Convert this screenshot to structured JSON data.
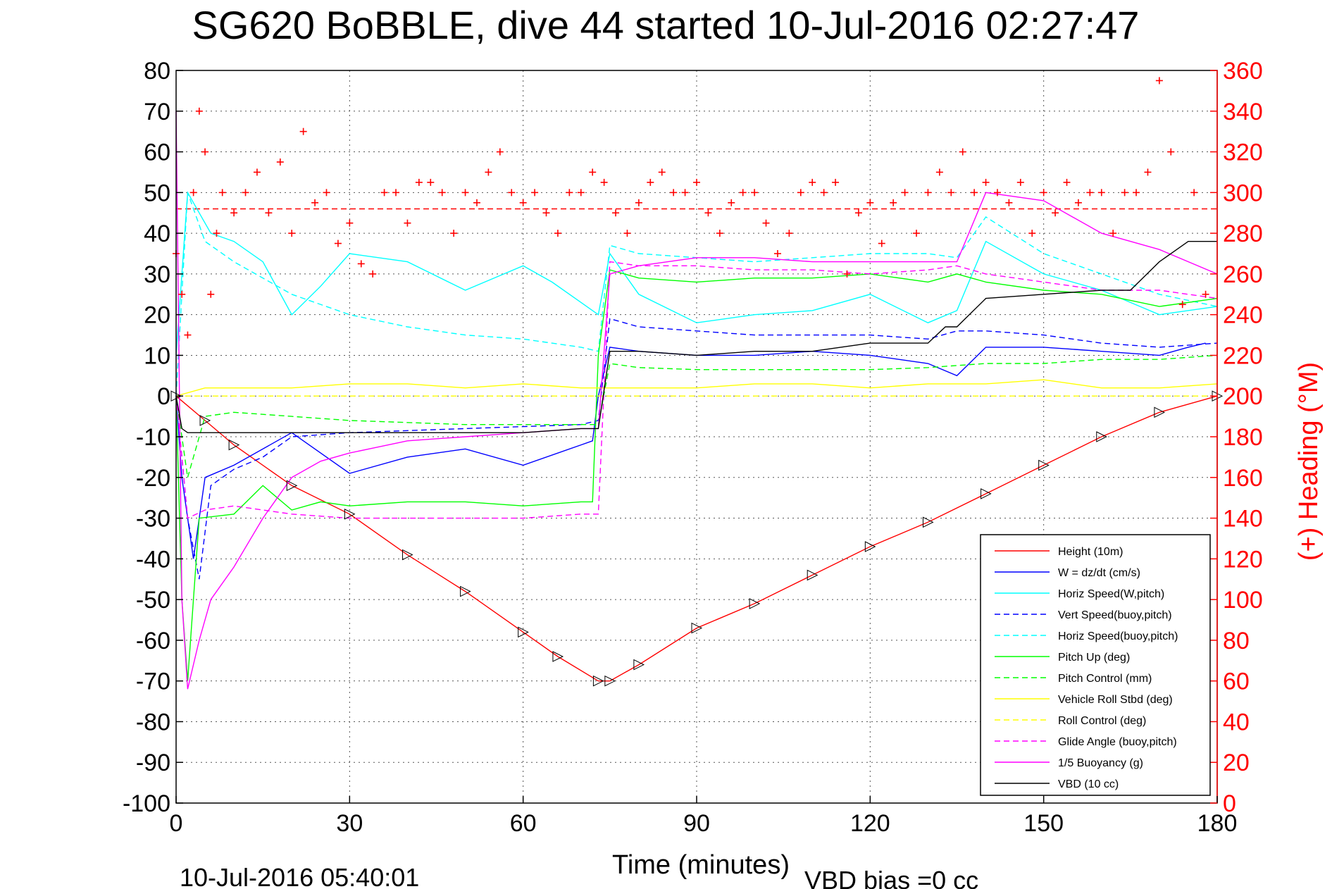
{
  "title": "SG620 BoBBLE, dive 44 started 10-Jul-2016 02:27:47",
  "footer_left": "10-Jul-2016 05:40:01",
  "footer_right": "VBD bias =0 cc",
  "colors": {
    "height": "#ff0000",
    "w": "#0000ff",
    "horiz_w": "#00ffff",
    "vert_buoy": "#0000ff",
    "horiz_buoy": "#00ffff",
    "pitch": "#00ff00",
    "pitch_ctl": "#00ff00",
    "roll": "#ffff00",
    "roll_ctl": "#ffff00",
    "glide": "#ff00ff",
    "buoy": "#ff00ff",
    "vbd": "#000000",
    "heading": "#ff0000"
  },
  "chart_data": {
    "type": "line",
    "xlabel": "Time (minutes)",
    "ylabel": "",
    "y2label": "(+) Heading (°M)",
    "xlim": [
      0,
      180
    ],
    "ylim": [
      -100,
      80
    ],
    "y2lim": [
      0,
      360
    ],
    "xticks": [
      0,
      30,
      60,
      90,
      120,
      150,
      180
    ],
    "yticks": [
      80,
      70,
      60,
      50,
      40,
      30,
      20,
      10,
      0,
      -10,
      -20,
      -30,
      -40,
      -50,
      -60,
      -70,
      -80,
      -90,
      -100
    ],
    "y2ticks": [
      360,
      340,
      320,
      300,
      280,
      260,
      240,
      220,
      200,
      180,
      160,
      140,
      120,
      100,
      80,
      60,
      40,
      20,
      0
    ],
    "grid": true,
    "legend_position": "bottom-right",
    "heading_reference_line": 292,
    "series": [
      {
        "name": "Height (10m)",
        "style": "solid",
        "color_key": "height",
        "x": [
          0,
          5,
          10,
          20,
          30,
          40,
          50,
          60,
          66,
          73,
          75,
          80,
          90,
          100,
          110,
          120,
          130,
          140,
          150,
          160,
          170,
          180
        ],
        "y": [
          0,
          -6,
          -12,
          -22,
          -29,
          -39,
          -48,
          -58,
          -64,
          -70,
          -70,
          -66,
          -57,
          -51,
          -44,
          -37,
          -31,
          -24,
          -17,
          -10,
          -4,
          0
        ]
      },
      {
        "name": "W = dz/dt (cm/s)",
        "style": "solid",
        "color_key": "w",
        "x": [
          0,
          1,
          2,
          3,
          5,
          10,
          20,
          30,
          40,
          50,
          60,
          70,
          72,
          73,
          75,
          80,
          90,
          100,
          110,
          120,
          130,
          135,
          140,
          150,
          160,
          170,
          175,
          178
        ],
        "y": [
          0,
          -20,
          -30,
          -40,
          -20,
          -17,
          -9,
          -19,
          -15,
          -13,
          -17,
          -12,
          -11,
          0,
          12,
          11,
          10,
          10,
          11,
          10,
          8,
          5,
          12,
          12,
          11,
          10,
          12,
          13
        ]
      },
      {
        "name": "Horiz Speed(W,pitch)",
        "style": "solid",
        "color_key": "horiz_w",
        "x": [
          0,
          2,
          4,
          6,
          10,
          15,
          20,
          25,
          30,
          40,
          50,
          60,
          65,
          70,
          73,
          75,
          80,
          90,
          100,
          110,
          120,
          130,
          135,
          140,
          150,
          160,
          170,
          180
        ],
        "y": [
          10,
          50,
          45,
          40,
          38,
          33,
          20,
          27,
          35,
          33,
          26,
          32,
          28,
          23,
          20,
          35,
          25,
          18,
          20,
          21,
          25,
          18,
          21,
          38,
          30,
          26,
          20,
          22
        ]
      },
      {
        "name": "Vert Speed(buoy,pitch)",
        "style": "dashed",
        "color_key": "vert_buoy",
        "x": [
          0,
          2,
          4,
          6,
          10,
          15,
          20,
          30,
          40,
          50,
          60,
          70,
          73,
          75,
          80,
          90,
          100,
          110,
          120,
          130,
          135,
          140,
          150,
          160,
          170,
          180
        ],
        "y": [
          0,
          -30,
          -45,
          -22,
          -18,
          -15,
          -10,
          -9,
          -8.5,
          -8,
          -7.5,
          -7,
          -6,
          19,
          17,
          16,
          15,
          15,
          15,
          14,
          16,
          16,
          15,
          13,
          12,
          13
        ]
      },
      {
        "name": "Horiz Speed(buoy,pitch)",
        "style": "dashed",
        "color_key": "horiz_buoy",
        "x": [
          0,
          2,
          5,
          10,
          20,
          30,
          40,
          50,
          60,
          70,
          73,
          75,
          80,
          90,
          100,
          110,
          120,
          130,
          135,
          140,
          150,
          160,
          170,
          180
        ],
        "y": [
          0,
          50,
          38,
          33,
          25,
          20,
          17,
          15,
          14,
          12,
          11,
          37,
          35,
          34,
          33,
          34,
          35,
          35,
          34,
          44,
          35,
          30,
          25,
          22
        ]
      },
      {
        "name": "Pitch Up (deg)",
        "style": "solid",
        "color_key": "pitch",
        "x": [
          0,
          1,
          2,
          4,
          10,
          15,
          20,
          25,
          30,
          40,
          50,
          60,
          70,
          72,
          73,
          75,
          80,
          90,
          100,
          110,
          120,
          130,
          135,
          140,
          150,
          160,
          170,
          180
        ],
        "y": [
          0,
          -50,
          -70,
          -30,
          -29,
          -22,
          -28,
          -26,
          -27,
          -26,
          -26,
          -27,
          -26,
          -26,
          10,
          31,
          29,
          28,
          29,
          29,
          30,
          28,
          30,
          28,
          26,
          25,
          22,
          24
        ]
      },
      {
        "name": "Pitch Control (mm)",
        "style": "dashed",
        "color_key": "pitch_ctl",
        "x": [
          0,
          2,
          5,
          10,
          20,
          30,
          40,
          50,
          60,
          70,
          73,
          75,
          80,
          90,
          100,
          110,
          120,
          130,
          140,
          150,
          160,
          170,
          180
        ],
        "y": [
          0,
          -20,
          -5,
          -4,
          -5,
          -6,
          -6.5,
          -7,
          -7,
          -7,
          -7,
          8,
          7,
          6.5,
          6.5,
          6.5,
          6.5,
          7,
          8,
          8,
          9,
          9,
          10
        ]
      },
      {
        "name": "Vehicle Roll Stbd (deg)",
        "style": "solid",
        "color_key": "roll",
        "x": [
          0,
          5,
          10,
          20,
          30,
          40,
          50,
          60,
          70,
          73,
          80,
          90,
          100,
          110,
          120,
          130,
          140,
          150,
          160,
          170,
          180
        ],
        "y": [
          0,
          2,
          2,
          2,
          3,
          3,
          2,
          3,
          2,
          2,
          2,
          2,
          3,
          3,
          2,
          3,
          3,
          4,
          2,
          2,
          3
        ]
      },
      {
        "name": "Roll Control (deg)",
        "style": "dashed",
        "color_key": "roll_ctl",
        "x": [
          0,
          5,
          10,
          20,
          30,
          40,
          50,
          60,
          70,
          73,
          80,
          90,
          100,
          110,
          120,
          130,
          140,
          150,
          160,
          170,
          180
        ],
        "y": [
          0,
          0,
          0,
          0,
          0,
          0,
          0,
          0,
          0,
          0,
          0,
          0,
          0,
          0,
          0,
          0,
          0,
          0,
          0,
          0,
          0
        ]
      },
      {
        "name": "Glide Angle (buoy,pitch)",
        "style": "dashed",
        "color_key": "glide",
        "x": [
          0,
          2,
          5,
          10,
          20,
          30,
          40,
          50,
          60,
          70,
          73,
          75,
          80,
          90,
          100,
          110,
          120,
          130,
          135,
          140,
          150,
          160,
          170,
          180
        ],
        "y": [
          0,
          -30,
          -28,
          -27,
          -29,
          -30,
          -30,
          -30,
          -30,
          -29,
          -29,
          33,
          32,
          32,
          31,
          31,
          30,
          31,
          32,
          30,
          28,
          26,
          26,
          24
        ]
      },
      {
        "name": "1/5 Buoyancy (g)",
        "style": "solid",
        "color_key": "buoy",
        "x": [
          0,
          1,
          2,
          4,
          6,
          10,
          15,
          20,
          25,
          30,
          40,
          50,
          60,
          70,
          73,
          75,
          80,
          90,
          100,
          110,
          120,
          130,
          135,
          140,
          150,
          160,
          170,
          180
        ],
        "y": [
          70,
          -50,
          -72,
          -60,
          -50,
          -42,
          -30,
          -20,
          -16,
          -14,
          -11,
          -10,
          -9,
          -8,
          -8,
          30,
          32,
          34,
          34,
          33,
          33,
          33,
          33,
          50,
          48,
          40,
          36,
          30
        ]
      },
      {
        "name": "VBD (10 cc)",
        "style": "solid",
        "color_key": "vbd",
        "x": [
          0,
          1,
          2,
          5,
          10,
          20,
          30,
          40,
          50,
          60,
          70,
          73,
          75,
          80,
          90,
          100,
          110,
          120,
          130,
          133,
          135,
          140,
          150,
          160,
          165,
          170,
          175,
          180
        ],
        "y": [
          0,
          -8,
          -9,
          -9,
          -9,
          -9,
          -9,
          -9,
          -9,
          -9,
          -8,
          -8,
          11,
          11,
          10,
          11,
          11,
          13,
          13,
          17,
          17,
          24,
          25,
          26,
          26,
          33,
          38,
          38
        ]
      }
    ],
    "heading_series": {
      "name": "(+) Heading",
      "x": [
        0,
        1,
        2,
        3,
        4,
        5,
        6,
        7,
        8,
        10,
        12,
        14,
        16,
        18,
        20,
        22,
        24,
        26,
        28,
        30,
        32,
        34,
        36,
        38,
        40,
        42,
        44,
        46,
        48,
        50,
        52,
        54,
        56,
        58,
        60,
        62,
        64,
        66,
        68,
        70,
        72,
        74,
        76,
        78,
        80,
        82,
        84,
        86,
        88,
        90,
        92,
        94,
        96,
        98,
        100,
        102,
        104,
        106,
        108,
        110,
        112,
        114,
        116,
        118,
        120,
        122,
        124,
        126,
        128,
        130,
        132,
        134,
        136,
        138,
        140,
        142,
        144,
        146,
        148,
        150,
        152,
        154,
        156,
        158,
        160,
        162,
        164,
        166,
        168,
        170,
        172,
        174,
        176,
        178
      ],
      "y": [
        270,
        250,
        230,
        300,
        340,
        320,
        250,
        280,
        300,
        290,
        300,
        310,
        290,
        315,
        280,
        330,
        295,
        300,
        275,
        285,
        265,
        260,
        300,
        300,
        285,
        305,
        305,
        300,
        280,
        300,
        295,
        310,
        320,
        300,
        295,
        300,
        290,
        280,
        300,
        300,
        310,
        305,
        290,
        280,
        295,
        305,
        310,
        300,
        300,
        305,
        290,
        280,
        295,
        300,
        300,
        285,
        270,
        280,
        300,
        305,
        300,
        305,
        260,
        290,
        295,
        275,
        295,
        300,
        280,
        300,
        310,
        300,
        320,
        300,
        305,
        300,
        295,
        305,
        280,
        300,
        290,
        305,
        295,
        300,
        300,
        280,
        300,
        300,
        310,
        355,
        320,
        245,
        300,
        250
      ]
    }
  },
  "legend": [
    {
      "label": "Height (10m)",
      "color_key": "height",
      "style": "solid"
    },
    {
      "label": "W = dz/dt (cm/s)",
      "color_key": "w",
      "style": "solid"
    },
    {
      "label": "Horiz Speed(W,pitch)",
      "color_key": "horiz_w",
      "style": "solid"
    },
    {
      "label": "Vert Speed(buoy,pitch)",
      "color_key": "vert_buoy",
      "style": "dashed"
    },
    {
      "label": "Horiz Speed(buoy,pitch)",
      "color_key": "horiz_buoy",
      "style": "dashed"
    },
    {
      "label": "Pitch Up (deg)",
      "color_key": "pitch",
      "style": "solid"
    },
    {
      "label": "Pitch Control (mm)",
      "color_key": "pitch_ctl",
      "style": "dashed"
    },
    {
      "label": "Vehicle Roll Stbd (deg)",
      "color_key": "roll",
      "style": "solid"
    },
    {
      "label": "Roll Control (deg)",
      "color_key": "roll_ctl",
      "style": "dashed"
    },
    {
      "label": "Glide Angle (buoy,pitch)",
      "color_key": "glide",
      "style": "dashed"
    },
    {
      "label": "1/5 Buoyancy (g)",
      "color_key": "buoy",
      "style": "solid"
    },
    {
      "label": "VBD (10 cc)",
      "color_key": "vbd",
      "style": "solid"
    }
  ]
}
